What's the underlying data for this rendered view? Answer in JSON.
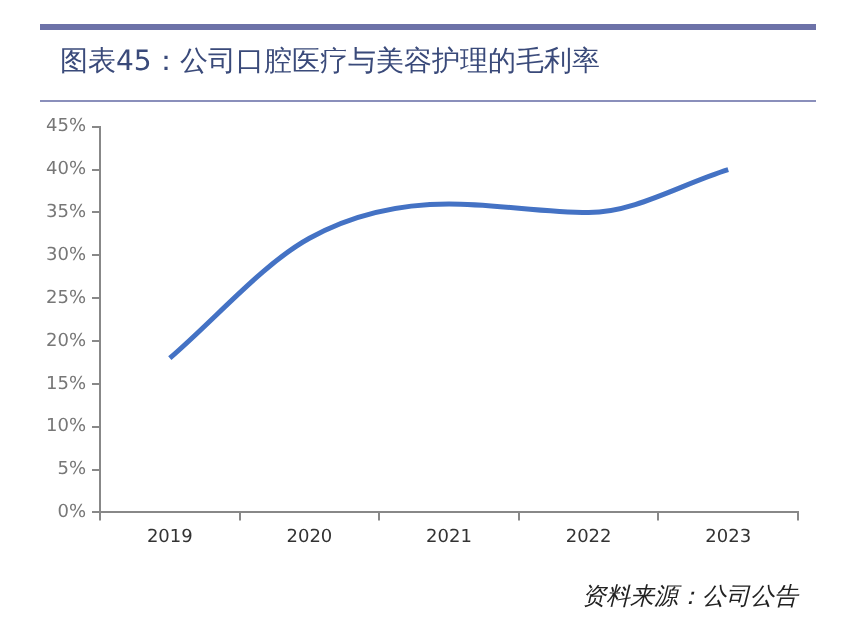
{
  "chart_data": {
    "type": "line",
    "title": "图表45：公司口腔医疗与美容护理的毛利率",
    "categories": [
      "2019",
      "2020",
      "2021",
      "2022",
      "2023"
    ],
    "series": [
      {
        "color": "#4472c4",
        "values": [
          18,
          32,
          36,
          35,
          40
        ]
      }
    ],
    "ylim": [
      0,
      45
    ],
    "yticks": [
      {
        "value": 0,
        "label": "0%"
      },
      {
        "value": 5,
        "label": "5%"
      },
      {
        "value": 10,
        "label": "10%"
      },
      {
        "value": 15,
        "label": "15%"
      },
      {
        "value": 20,
        "label": "20%"
      },
      {
        "value": 25,
        "label": "25%"
      },
      {
        "value": 30,
        "label": "30%"
      },
      {
        "value": 35,
        "label": "35%"
      },
      {
        "value": 40,
        "label": "40%"
      },
      {
        "value": 45,
        "label": "45%"
      }
    ],
    "grid": false,
    "legend": false,
    "marker": "none",
    "line_style": "solid",
    "annotations": [
      "资料来源：公司公告"
    ]
  }
}
